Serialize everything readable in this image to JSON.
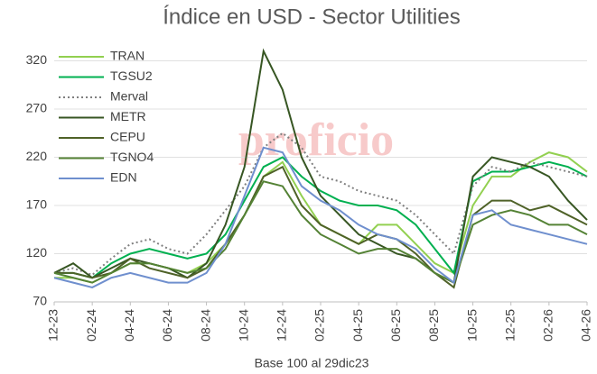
{
  "chart_data": {
    "type": "line",
    "title": "Índice en USD - Sector Utilities",
    "watermark": "proficio",
    "x_label": "Base 100 al 29dic23",
    "categories": [
      "12-23",
      null,
      "02-24",
      null,
      "04-24",
      null,
      "06-24",
      null,
      "08-24",
      null,
      "10-24",
      null,
      "12-24",
      null,
      "02-25",
      null,
      "04-25",
      null,
      "06-25",
      null,
      "08-25",
      null,
      "10-25",
      null,
      "12-25",
      null,
      "02-26",
      null,
      "04-26"
    ],
    "ylim": [
      70,
      355
    ],
    "yticks": [
      70,
      120,
      170,
      220,
      270,
      320
    ],
    "grid": true,
    "legend": "upper left",
    "series": [
      {
        "name": "TRAN",
        "color": "#92d050",
        "values": [
          95,
          95,
          90,
          100,
          110,
          110,
          105,
          100,
          110,
          130,
          160,
          200,
          215,
          180,
          150,
          140,
          130,
          150,
          150,
          130,
          110,
          100,
          170,
          200,
          200,
          215,
          225,
          220,
          205
        ]
      },
      {
        "name": "TGSU2",
        "color": "#00b050",
        "values": [
          100,
          100,
          95,
          110,
          120,
          125,
          120,
          115,
          120,
          140,
          175,
          210,
          220,
          200,
          185,
          175,
          170,
          170,
          165,
          150,
          125,
          100,
          195,
          205,
          205,
          210,
          215,
          210,
          200
        ]
      },
      {
        "name": "Merval",
        "color": "#7f7f7f",
        "dash": true,
        "values": [
          100,
          105,
          98,
          115,
          130,
          135,
          125,
          120,
          140,
          165,
          190,
          230,
          245,
          230,
          200,
          195,
          185,
          180,
          175,
          160,
          140,
          120,
          190,
          210,
          205,
          215,
          210,
          205,
          200
        ]
      },
      {
        "name": "METR",
        "color": "#375623",
        "values": [
          100,
          110,
          95,
          105,
          115,
          110,
          105,
          95,
          110,
          150,
          210,
          330,
          290,
          220,
          180,
          160,
          140,
          130,
          120,
          115,
          100,
          90,
          200,
          220,
          215,
          210,
          200,
          175,
          155
        ]
      },
      {
        "name": "CEPU",
        "color": "#4f6228",
        "values": [
          100,
          100,
          95,
          100,
          115,
          105,
          100,
          95,
          105,
          130,
          160,
          200,
          210,
          170,
          150,
          140,
          130,
          140,
          135,
          120,
          100,
          85,
          160,
          175,
          175,
          165,
          170,
          160,
          150
        ]
      },
      {
        "name": "TGNO4",
        "color": "#548235",
        "values": [
          100,
          95,
          90,
          100,
          110,
          110,
          105,
          100,
          105,
          125,
          160,
          195,
          190,
          160,
          140,
          130,
          120,
          125,
          125,
          115,
          100,
          90,
          150,
          160,
          165,
          160,
          150,
          150,
          140
        ]
      },
      {
        "name": "EDN",
        "color": "#6f8fce",
        "values": [
          95,
          90,
          85,
          95,
          100,
          95,
          90,
          90,
          100,
          130,
          180,
          230,
          225,
          190,
          175,
          165,
          150,
          140,
          135,
          125,
          105,
          90,
          160,
          165,
          150,
          145,
          140,
          135,
          130
        ]
      }
    ]
  }
}
